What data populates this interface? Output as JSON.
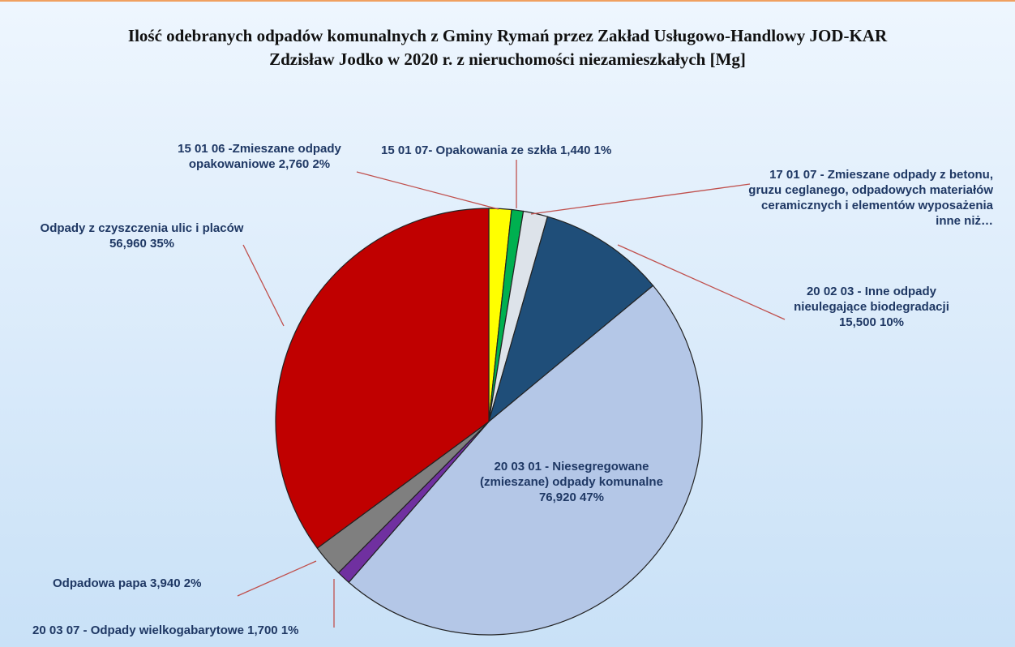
{
  "chart_data": {
    "type": "pie",
    "title": "Ilość odebranych odpadów komunalnych z Gminy Rymań przez Zakład Usługowo-Handlowy JOD-KAR Zdzisław Jodko w 2020 r. z nieruchomości niezamieszkałych [Mg]",
    "categories": [
      "15 01 06 -Zmieszane odpady opakowaniowe",
      "15 01 07- Opakowania ze szkła",
      "17 01 07 - Zmieszane odpady z betonu, gruzu ceglanego, odpadowych materiałów ceramicznych i elementów wyposażenia inne niż…",
      "20 02 03 - Inne odpady nieulegające biodegradacji",
      "20 03 01 - Niesegregowane (zmieszane) odpady komunalne",
      "20 03 07 - Odpady wielkogabarytowe",
      "Odpadowa papa",
      "Odpady z czyszczenia ulic i placów"
    ],
    "values": [
      2.76,
      1.44,
      3.0,
      15.5,
      76.92,
      1.7,
      3.94,
      56.96
    ],
    "value_labels": [
      "2,760 2%",
      "1,440 1%",
      null,
      "15,500 10%",
      "76,920 47%",
      "1,700 1%",
      "3,940 2%",
      "56,960 35%"
    ],
    "colors": [
      "#ffff00",
      "#00b050",
      "#dde3ea",
      "#1f4e79",
      "#b4c7e7",
      "#7030a0",
      "#7f7f7f",
      "#c00000"
    ]
  }
}
